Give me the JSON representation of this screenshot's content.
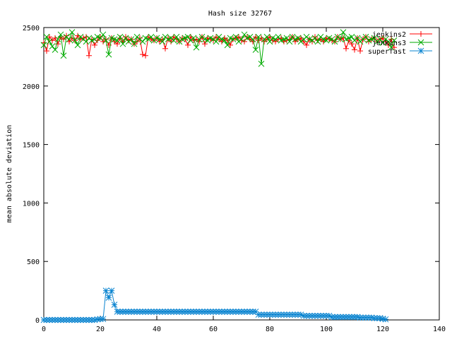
{
  "chart_data": {
    "type": "line",
    "title": "Hash size 32767",
    "xlabel": "",
    "ylabel": "mean absolute deviation",
    "xlim": [
      0,
      140
    ],
    "ylim": [
      0,
      2500
    ],
    "xticks": [
      0,
      20,
      40,
      60,
      80,
      100,
      120,
      140
    ],
    "yticks": [
      0,
      500,
      1000,
      1500,
      2000,
      2500
    ],
    "grid": false,
    "legend_position": "top-right",
    "series": [
      {
        "name": "jenkins2",
        "color": "#ff0000",
        "marker": "plus",
        "x_start": 0,
        "values": [
          2370,
          2300,
          2420,
          2390,
          2410,
          2360,
          2420,
          2400,
          2430,
          2380,
          2410,
          2390,
          2430,
          2400,
          2410,
          2420,
          2260,
          2400,
          2350,
          2390,
          2420,
          2380,
          2400,
          2350,
          2410,
          2380,
          2360,
          2410,
          2380,
          2420,
          2390,
          2400,
          2360,
          2380,
          2410,
          2270,
          2260,
          2420,
          2400,
          2390,
          2410,
          2380,
          2400,
          2320,
          2410,
          2380,
          2420,
          2400,
          2380,
          2410,
          2400,
          2350,
          2420,
          2390,
          2400,
          2380,
          2420,
          2360,
          2410,
          2400,
          2390,
          2420,
          2400,
          2380,
          2410,
          2390,
          2350,
          2400,
          2410,
          2420,
          2390,
          2380,
          2420,
          2400,
          2380,
          2420,
          2390,
          2410,
          2380,
          2400,
          2420,
          2390,
          2380,
          2400,
          2410,
          2380,
          2390,
          2400,
          2420,
          2380,
          2400,
          2410,
          2380,
          2350,
          2400,
          2380,
          2420,
          2390,
          2400,
          2380,
          2410,
          2400,
          2390,
          2380,
          2420,
          2400,
          2410,
          2320,
          2390,
          2360,
          2310,
          2410,
          2300,
          2400,
          2420,
          2380,
          2400,
          2410,
          2380,
          2400,
          2410,
          2380,
          2350,
          2400,
          2330
        ]
      },
      {
        "name": "jenkins3",
        "color": "#00aa00",
        "marker": "cross",
        "x_start": 0,
        "values": [
          2350,
          2420,
          2380,
          2340,
          2310,
          2400,
          2440,
          2260,
          2420,
          2400,
          2460,
          2390,
          2350,
          2420,
          2400,
          2380,
          2410,
          2390,
          2400,
          2420,
          2410,
          2440,
          2390,
          2270,
          2410,
          2400,
          2390,
          2420,
          2360,
          2410,
          2380,
          2400,
          2360,
          2420,
          2400,
          2380,
          2410,
          2400,
          2420,
          2390,
          2410,
          2400,
          2380,
          2420,
          2400,
          2410,
          2390,
          2420,
          2380,
          2400,
          2410,
          2420,
          2390,
          2410,
          2330,
          2400,
          2420,
          2400,
          2390,
          2410,
          2400,
          2380,
          2420,
          2400,
          2390,
          2350,
          2410,
          2400,
          2420,
          2380,
          2400,
          2440,
          2410,
          2420,
          2400,
          2310,
          2420,
          2190,
          2400,
          2420,
          2380,
          2410,
          2400,
          2420,
          2390,
          2400,
          2410,
          2380,
          2420,
          2400,
          2410,
          2380,
          2400,
          2420,
          2400,
          2390,
          2410,
          2380,
          2420,
          2400,
          2390,
          2410,
          2400,
          2380,
          2420,
          2400,
          2460,
          2400,
          2410,
          2420,
          2390,
          2410,
          2380,
          2400,
          2420,
          2390,
          2400,
          2410,
          2380,
          2400,
          2370,
          2400,
          2380,
          2330,
          2390
        ]
      },
      {
        "name": "superfast",
        "color": "#0a84d0",
        "marker": "star",
        "x_start": 0,
        "values": [
          0,
          0,
          0,
          0,
          0,
          0,
          0,
          0,
          0,
          0,
          0,
          0,
          0,
          0,
          0,
          0,
          0,
          0,
          0,
          5,
          8,
          8,
          250,
          190,
          250,
          130,
          70,
          70,
          70,
          70,
          70,
          70,
          70,
          70,
          70,
          70,
          70,
          70,
          70,
          70,
          70,
          70,
          70,
          70,
          70,
          70,
          70,
          70,
          70,
          70,
          70,
          70,
          70,
          70,
          70,
          70,
          70,
          70,
          70,
          70,
          70,
          70,
          70,
          70,
          70,
          70,
          70,
          70,
          70,
          70,
          70,
          70,
          70,
          70,
          70,
          70,
          45,
          45,
          45,
          45,
          45,
          45,
          45,
          45,
          45,
          45,
          45,
          45,
          45,
          45,
          45,
          45,
          35,
          35,
          35,
          35,
          35,
          35,
          35,
          35,
          35,
          35,
          25,
          25,
          25,
          25,
          25,
          25,
          25,
          25,
          25,
          25,
          20,
          20,
          20,
          20,
          20,
          15,
          15,
          15,
          10,
          5
        ]
      }
    ]
  }
}
